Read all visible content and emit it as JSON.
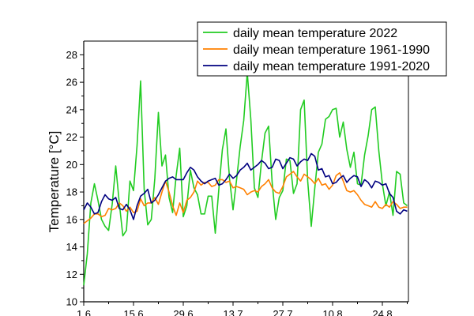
{
  "chart_data": {
    "type": "line",
    "ylabel": "Temperature [°C]",
    "xlabel": "",
    "ylim": [
      10,
      29
    ],
    "yticks": [
      10,
      12,
      14,
      16,
      18,
      20,
      22,
      24,
      26,
      28
    ],
    "xtick_labels": [
      "1.6",
      "15.6",
      "29.6",
      "13.7",
      "27.7",
      "10.8",
      "24.8"
    ],
    "legend_position": "top-right",
    "grid": false,
    "x": [
      1,
      2,
      3,
      4,
      5,
      6,
      7,
      8,
      9,
      10,
      11,
      12,
      13,
      14,
      15,
      16,
      17,
      18,
      19,
      20,
      21,
      22,
      23,
      24,
      25,
      26,
      27,
      28,
      29,
      30,
      31,
      32,
      33,
      34,
      35,
      36,
      37,
      38,
      39,
      40,
      41,
      42,
      43,
      44,
      45,
      46,
      47,
      48,
      49,
      50,
      51,
      52,
      53,
      54,
      55,
      56,
      57,
      58,
      59,
      60,
      61,
      62,
      63,
      64,
      65,
      66,
      67,
      68,
      69,
      70,
      71,
      72,
      73,
      74,
      75,
      76,
      77,
      78,
      79,
      80,
      81,
      82,
      83,
      84,
      85,
      86,
      87,
      88,
      89,
      90,
      91,
      92
    ],
    "series": [
      {
        "name": "daily mean temperature 2022",
        "color": "#22cc22",
        "values": [
          11.2,
          13.5,
          17.2,
          18.6,
          17.4,
          16.0,
          15.5,
          15.2,
          17.1,
          19.9,
          17.2,
          14.8,
          15.2,
          18.8,
          18.1,
          21.4,
          26.1,
          18.2,
          15.6,
          16.0,
          19.0,
          23.8,
          19.9,
          20.7,
          17.6,
          16.5,
          19.2,
          21.2,
          16.2,
          17.0,
          19.6,
          18.3,
          17.8,
          16.4,
          16.4,
          17.7,
          17.7,
          15.0,
          18.2,
          21.1,
          22.6,
          19.0,
          16.7,
          18.9,
          21.3,
          23.2,
          26.7,
          23.3,
          18.3,
          17.6,
          20.2,
          22.3,
          22.8,
          18.7,
          16.0,
          17.6,
          18.1,
          20.4,
          20.3,
          17.9,
          18.6,
          24.0,
          24.7,
          18.8,
          15.5,
          18.3,
          20.9,
          21.5,
          23.3,
          23.5,
          24.0,
          24.1,
          22.0,
          23.1,
          21.1,
          19.8,
          20.9,
          18.6,
          18.5,
          20.7,
          22.1,
          24.0,
          24.2,
          21.0,
          18.6,
          17.0,
          18.0,
          16.3,
          19.5,
          19.3,
          17.2,
          17.0
        ]
      },
      {
        "name": "daily mean temperature 1961-1990",
        "color": "#ff8000",
        "values": [
          15.7,
          15.9,
          16.1,
          16.4,
          16.4,
          16.2,
          16.3,
          16.8,
          16.7,
          16.8,
          17.2,
          17.0,
          16.6,
          16.9,
          16.5,
          16.6,
          17.5,
          17.0,
          17.2,
          17.2,
          17.6,
          17.1,
          18.0,
          18.8,
          18.0,
          17.0,
          16.3,
          17.2,
          16.5,
          17.4,
          17.6,
          18.0,
          18.8,
          18.5,
          18.7,
          18.7,
          18.4,
          18.5,
          18.9,
          18.9,
          18.7,
          18.8,
          18.3,
          18.4,
          18.3,
          18.2,
          17.8,
          18.0,
          18.1,
          18.0,
          18.4,
          18.6,
          18.9,
          18.3,
          18.0,
          17.9,
          18.4,
          19.1,
          19.3,
          19.5,
          19.1,
          18.8,
          19.3,
          19.1,
          18.9,
          18.6,
          19.0,
          18.5,
          18.6,
          18.2,
          18.5,
          19.2,
          19.4,
          18.8,
          18.1,
          18.0,
          18.1,
          17.8,
          17.4,
          17.1,
          17.0,
          16.9,
          17.3,
          16.9,
          16.8,
          17.1,
          16.9,
          17.3,
          17.1,
          16.8,
          16.9,
          16.9
        ]
      },
      {
        "name": "daily mean temperature 1991-2020",
        "color": "#000080",
        "values": [
          16.7,
          17.2,
          16.9,
          16.4,
          16.5,
          17.3,
          17.8,
          17.5,
          17.4,
          17.6,
          16.8,
          16.7,
          17.1,
          16.7,
          16.0,
          17.0,
          17.7,
          17.9,
          18.2,
          17.2,
          17.4,
          17.8,
          18.3,
          18.8,
          19.0,
          19.1,
          18.9,
          18.9,
          18.9,
          19.4,
          19.8,
          19.6,
          19.1,
          18.8,
          18.6,
          18.8,
          18.9,
          19.0,
          18.5,
          18.6,
          18.9,
          19.3,
          19.0,
          19.2,
          19.6,
          19.8,
          20.1,
          19.6,
          19.8,
          20.0,
          20.3,
          20.1,
          19.7,
          19.8,
          20.4,
          20.3,
          19.7,
          20.1,
          20.5,
          20.4,
          19.9,
          20.2,
          20.4,
          20.3,
          20.8,
          20.6,
          19.6,
          19.7,
          19.1,
          19.2,
          18.6,
          18.7,
          19.0,
          19.2,
          18.7,
          19.0,
          19.2,
          19.1,
          18.4,
          18.9,
          18.7,
          18.3,
          18.8,
          18.7,
          18.5,
          18.6,
          17.9,
          17.6,
          16.6,
          16.4,
          16.7,
          16.6
        ]
      }
    ]
  }
}
